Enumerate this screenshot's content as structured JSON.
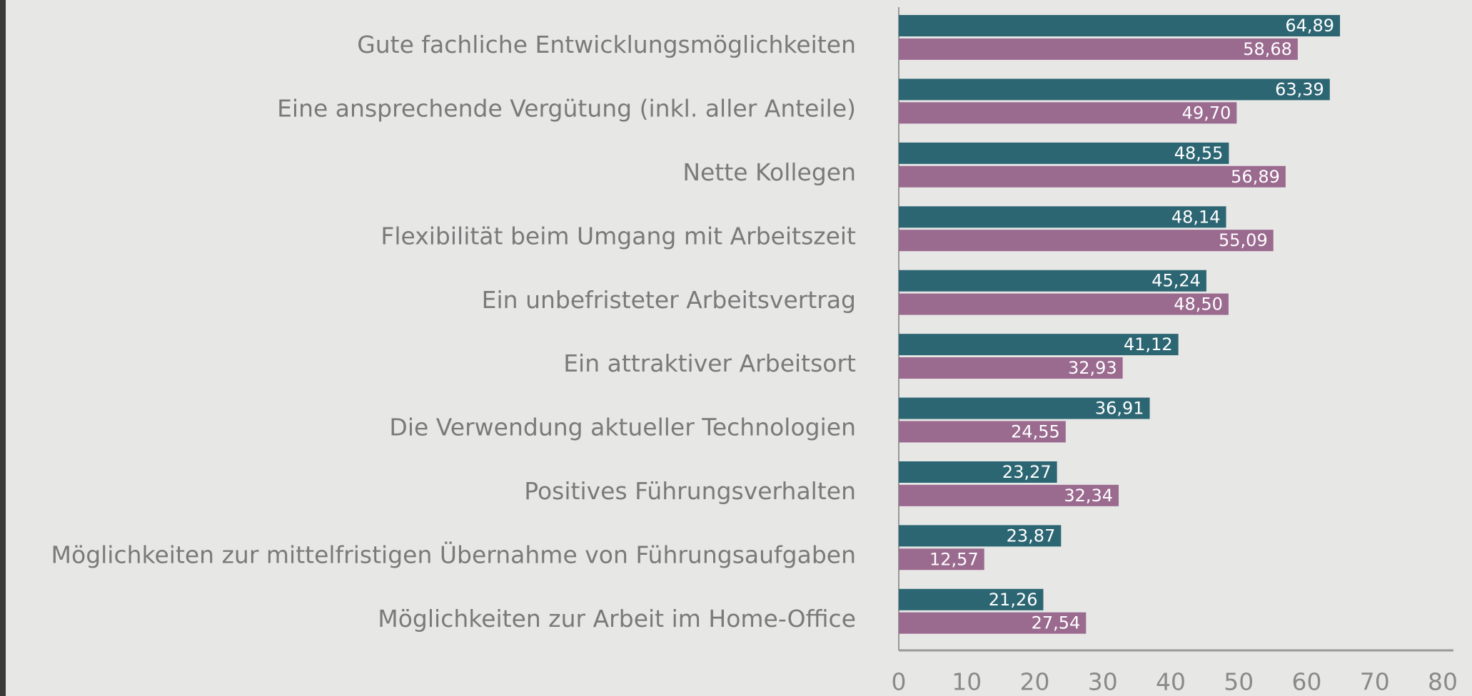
{
  "chart_data": {
    "type": "hbar",
    "categories": [
      "Gute fachliche Entwicklungsmöglichkeiten",
      "Eine ansprechende Vergütung (inkl. aller Anteile)",
      "Nette Kollegen",
      "Flexibilität beim Umgang mit Arbeitszeit",
      "Ein unbefristeter Arbeitsvertrag",
      "Ein attraktiver Arbeitsort",
      "Die Verwendung aktueller Technologien",
      "Positives Führungsverhalten",
      "Möglichkeiten zur mittelfristigen Übernahme von Führungsaufgaben",
      "Möglichkeiten zur Arbeit im Home-Office"
    ],
    "series": [
      {
        "color": "#2d6673",
        "values": [
          64.89,
          63.39,
          48.55,
          48.14,
          45.24,
          41.12,
          36.91,
          23.27,
          23.87,
          21.26
        ],
        "value_labels": [
          "64,89",
          "63,39",
          "48,55",
          "48,14",
          "45,24",
          "41,12",
          "36,91",
          "23,27",
          "23,87",
          "21,26"
        ]
      },
      {
        "color": "#9a6a8f",
        "values": [
          58.68,
          49.7,
          56.89,
          55.09,
          48.5,
          32.93,
          24.55,
          32.34,
          12.57,
          27.54
        ],
        "value_labels": [
          "58,68",
          "49,70",
          "56,89",
          "55,09",
          "48,50",
          "32,93",
          "24,55",
          "32,34",
          "12,57",
          "27,54"
        ]
      }
    ],
    "xlim": [
      0,
      80
    ],
    "xticks": [
      0,
      10,
      20,
      30,
      40,
      50,
      60,
      70,
      80
    ]
  }
}
